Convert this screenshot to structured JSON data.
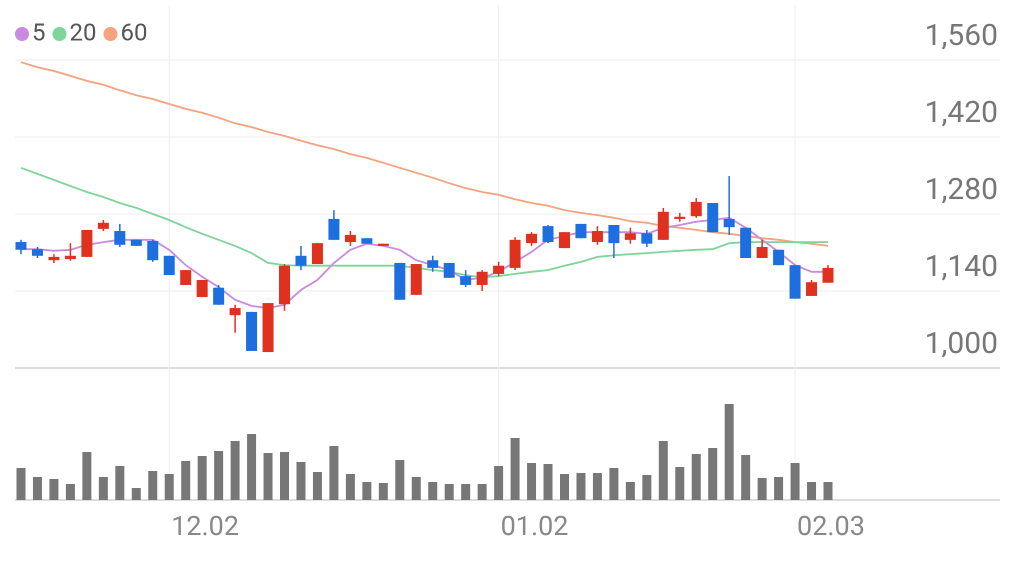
{
  "chart_data": {
    "type": "candlestick",
    "categories": [
      null,
      null,
      null,
      null,
      null,
      null,
      null,
      null,
      null,
      "12.02",
      null,
      null,
      null,
      null,
      null,
      null,
      null,
      null,
      null,
      null,
      null,
      null,
      null,
      null,
      null,
      null,
      null,
      null,
      null,
      "01.02",
      null,
      null,
      null,
      null,
      null,
      null,
      null,
      null,
      null,
      null,
      null,
      null,
      null,
      null,
      null,
      null,
      null,
      "02.03",
      null,
      null
    ],
    "open": [
      1229,
      1216,
      1196,
      1198,
      1202,
      1253,
      1249,
      1233,
      1231,
      1204,
      1151,
      1129,
      1146,
      1096,
      1102,
      1029,
      1116,
      1204,
      1189,
      1271,
      1229,
      1236,
      1222,
      1191,
      1133,
      1196,
      1191,
      1167,
      1151,
      1171,
      1182,
      1227,
      1258,
      1218,
      1262,
      1229,
      1260,
      1233,
      1245,
      1233,
      1271,
      1276,
      1300,
      1271,
      1255,
      1200,
      1215,
      1187,
      1131,
      1155
    ],
    "high": [
      1233,
      1220,
      1207,
      1227,
      1251,
      1269,
      1262,
      1233,
      1233,
      1204,
      1178,
      1160,
      1151,
      1115,
      1102,
      1118,
      1189,
      1222,
      1227,
      1287,
      1249,
      1236,
      1226,
      1191,
      1189,
      1204,
      1191,
      1178,
      1178,
      1193,
      1238,
      1247,
      1260,
      1247,
      1262,
      1258,
      1260,
      1255,
      1251,
      1291,
      1282,
      1309,
      1300,
      1349,
      1255,
      1233,
      1215,
      1187,
      1160,
      1187
    ],
    "low": [
      1207,
      1200,
      1191,
      1195,
      1202,
      1249,
      1220,
      1222,
      1193,
      1169,
      1151,
      1129,
      1115,
      1064,
      1031,
      1029,
      1104,
      1178,
      1189,
      1233,
      1222,
      1226,
      1222,
      1124,
      1133,
      1175,
      1164,
      1147,
      1140,
      1167,
      1178,
      1222,
      1227,
      1218,
      1236,
      1224,
      1200,
      1226,
      1220,
      1233,
      1266,
      1273,
      1247,
      1242,
      1200,
      1200,
      1187,
      1126,
      1131,
      1155
    ],
    "close": [
      1215,
      1204,
      1202,
      1204,
      1251,
      1264,
      1224,
      1222,
      1196,
      1169,
      1178,
      1160,
      1115,
      1109,
      1031,
      1118,
      1186,
      1186,
      1227,
      1233,
      1242,
      1226,
      1226,
      1124,
      1189,
      1182,
      1164,
      1151,
      1175,
      1186,
      1233,
      1244,
      1229,
      1247,
      1236,
      1249,
      1227,
      1245,
      1226,
      1284,
      1275,
      1302,
      1247,
      1256,
      1200,
      1220,
      1187,
      1126,
      1156,
      1182
    ],
    "up_color": "#e0301e",
    "down_color": "#1d6fe0",
    "series": [
      {
        "name": "5",
        "color": "#c98ae0",
        "values": [
          1216,
          1216,
          1213,
          1215,
          1224,
          1229,
          1233,
          1233,
          1233,
          1215,
          1187,
          1166,
          1147,
          1124,
          1113,
          1109,
          1115,
          1142,
          1160,
          1191,
          1215,
          1226,
          1222,
          1215,
          1196,
          1187,
          1178,
          1160,
          1164,
          1175,
          1193,
          1211,
          1233,
          1240,
          1247,
          1247,
          1247,
          1247,
          1244,
          1255,
          1260,
          1266,
          1269,
          1273,
          1255,
          1233,
          1211,
          1187,
          1175,
          1175
        ]
      },
      {
        "name": "20",
        "color": "#7fd49a",
        "values": [
          1364,
          1353,
          1342,
          1331,
          1320,
          1311,
          1300,
          1291,
          1280,
          1269,
          1256,
          1244,
          1233,
          1222,
          1209,
          1191,
          1187,
          1186,
          1186,
          1186,
          1186,
          1186,
          1186,
          1186,
          1182,
          1178,
          1175,
          1169,
          1165,
          1167,
          1171,
          1175,
          1178,
          1186,
          1193,
          1202,
          1205,
          1207,
          1209,
          1211,
          1213,
          1215,
          1216,
          1227,
          1229,
          1229,
          1229,
          1229,
          1229,
          1229
        ]
      },
      {
        "name": "60",
        "color": "#f5a27f",
        "values": [
          1556,
          1547,
          1540,
          1531,
          1522,
          1515,
          1505,
          1496,
          1489,
          1480,
          1471,
          1464,
          1455,
          1445,
          1438,
          1429,
          1422,
          1413,
          1405,
          1398,
          1389,
          1382,
          1373,
          1364,
          1355,
          1346,
          1336,
          1327,
          1320,
          1315,
          1307,
          1300,
          1295,
          1287,
          1282,
          1278,
          1273,
          1267,
          1264,
          1258,
          1255,
          1251,
          1247,
          1244,
          1240,
          1236,
          1233,
          1229,
          1226,
          1222
        ]
      }
    ],
    "ylim": [
      1000,
      1660
    ],
    "yticks": [
      {
        "value": 1000,
        "label": "1,000"
      },
      {
        "value": 1140,
        "label": "1,140"
      },
      {
        "value": 1280,
        "label": "1,280"
      },
      {
        "value": 1420,
        "label": "1,420"
      },
      {
        "value": 1560,
        "label": "1,560"
      }
    ],
    "volume": [
      32,
      23,
      21,
      16,
      48,
      23,
      34,
      12,
      29,
      26,
      39,
      44,
      49,
      59,
      66,
      47,
      48,
      38,
      28,
      54,
      26,
      18,
      17,
      40,
      23,
      18,
      16,
      16,
      16,
      34,
      62,
      37,
      36,
      26,
      27,
      27,
      32,
      18,
      25,
      59,
      33,
      46,
      52,
      96,
      45,
      22,
      23,
      37,
      18,
      18
    ],
    "volume_color": "#777777",
    "volume_ylim": [
      0,
      110
    ],
    "grid": true
  }
}
